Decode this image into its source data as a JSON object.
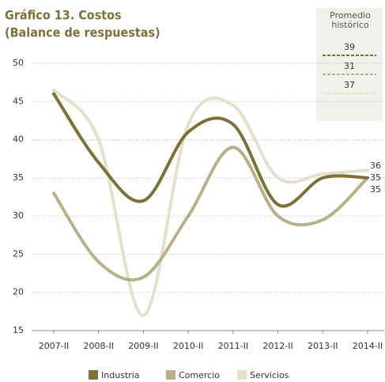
{
  "chart_data": {
    "type": "line",
    "title": "Gráfico 13. Costos",
    "subtitle": "(Balance de respuestas)",
    "categories": [
      "2007-II",
      "2008-II",
      "2009-II",
      "2010-II",
      "2011-II",
      "2012-II",
      "2013-II",
      "2014-II"
    ],
    "series": [
      {
        "name": "Industria",
        "color": "#7d7137",
        "values": [
          46,
          37,
          32,
          41,
          42,
          31.5,
          35,
          35
        ],
        "average": 39
      },
      {
        "name": "Comercio",
        "color": "#b8b188",
        "values": [
          33,
          24,
          22,
          30,
          39,
          30,
          29.5,
          35
        ],
        "average": 31
      },
      {
        "name": "Servicios",
        "color": "#e4e0ca",
        "values": [
          46.5,
          40,
          17,
          42,
          44.5,
          35,
          35.5,
          36
        ],
        "average": 37
      }
    ],
    "average_title": "Promedio histórico",
    "ylim": [
      15,
      50
    ],
    "yticks": [
      15,
      20,
      25,
      30,
      35,
      40,
      45,
      50
    ],
    "grid": true
  }
}
